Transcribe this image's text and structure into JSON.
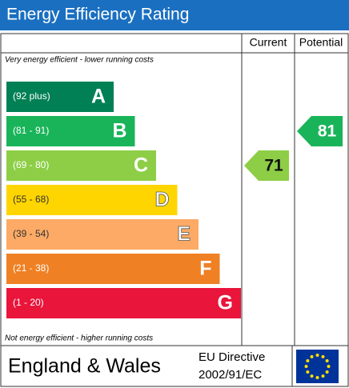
{
  "header": {
    "title": "Energy Efficiency Rating",
    "columns": [
      "Current",
      "Potential"
    ]
  },
  "top_note": "Very energy efficient - lower running costs",
  "bottom_note": "Not energy efficient - higher running costs",
  "bands": [
    {
      "range": "(92 plus)",
      "letter": "A",
      "color": "#008054"
    },
    {
      "range": "(81 - 91)",
      "letter": "B",
      "color": "#19b459"
    },
    {
      "range": "(69 - 80)",
      "letter": "C",
      "color": "#8dce46"
    },
    {
      "range": "(55 - 68)",
      "letter": "D",
      "color": "#ffd500"
    },
    {
      "range": "(39 - 54)",
      "letter": "E",
      "color": "#fcaa65"
    },
    {
      "range": "(21 - 38)",
      "letter": "F",
      "color": "#ef8023"
    },
    {
      "range": "(1 - 20)",
      "letter": "G",
      "color": "#e9153b"
    }
  ],
  "current": {
    "value": 71,
    "band": 2
  },
  "potential": {
    "value": 81,
    "band": 1
  },
  "footer": {
    "region": "England & Wales",
    "directive": [
      "EU Directive",
      "2002/91/EC"
    ]
  }
}
